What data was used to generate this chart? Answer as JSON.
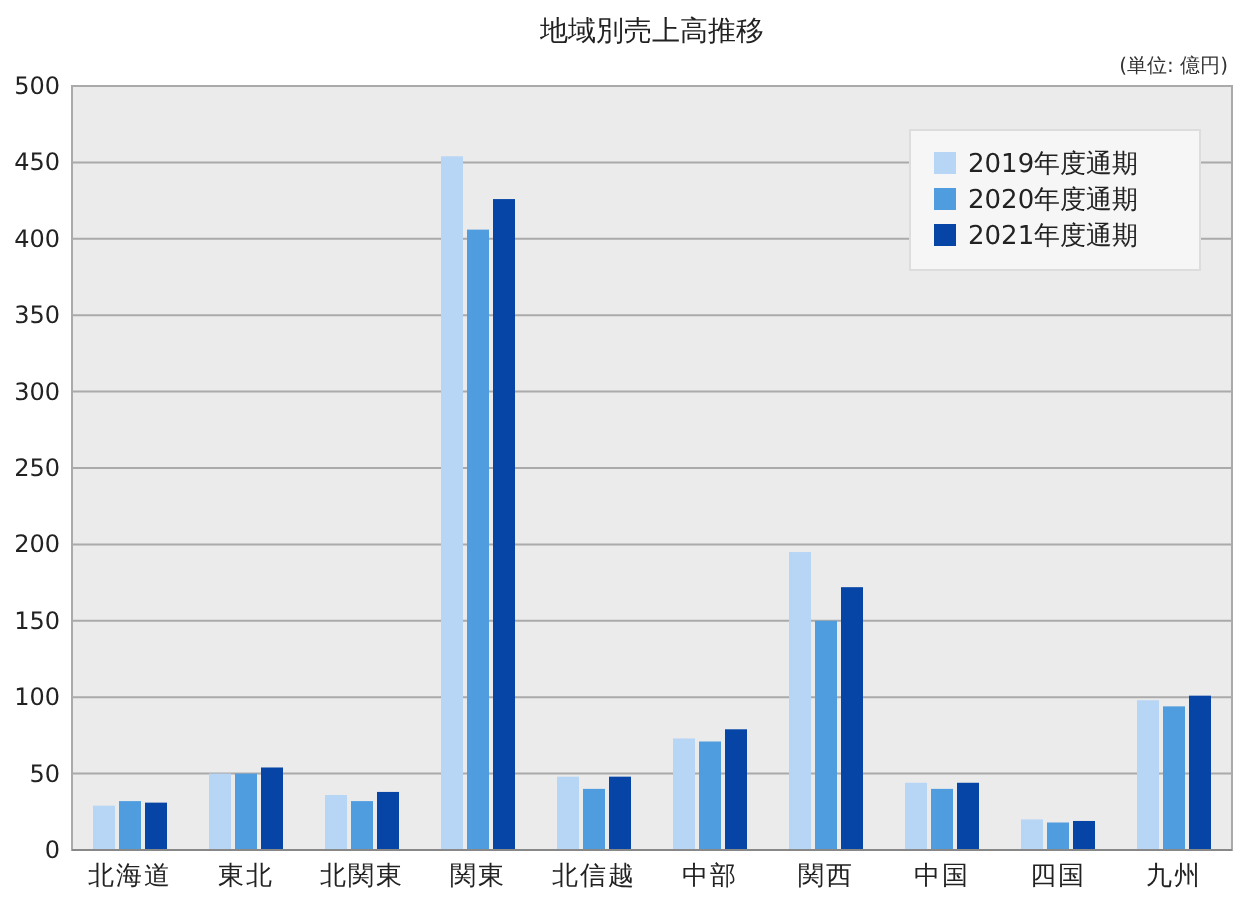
{
  "chart_data": {
    "type": "bar",
    "title": "地域別売上高推移",
    "annotations": [
      "(単位: 億円)"
    ],
    "categories": [
      "北海道",
      "東北",
      "北関東",
      "関東",
      "北信越",
      "中部",
      "関西",
      "中国",
      "四国",
      "九州"
    ],
    "series": [
      {
        "name": "2019年度通期",
        "color": "#b7d5f5",
        "values": [
          29,
          50,
          36,
          454,
          48,
          73,
          195,
          44,
          20,
          98
        ]
      },
      {
        "name": "2020年度通期",
        "color": "#4f9cdf",
        "values": [
          32,
          50,
          32,
          406,
          40,
          71,
          150,
          40,
          18,
          94
        ]
      },
      {
        "name": "2021年度通期",
        "color": "#0645a5",
        "values": [
          31,
          54,
          38,
          426,
          48,
          79,
          172,
          44,
          19,
          101
        ]
      }
    ],
    "ylim": [
      0,
      500
    ],
    "yticks": [
      0,
      50,
      100,
      150,
      200,
      250,
      300,
      350,
      400,
      450,
      500
    ],
    "grid": "y",
    "legend": "top right"
  }
}
